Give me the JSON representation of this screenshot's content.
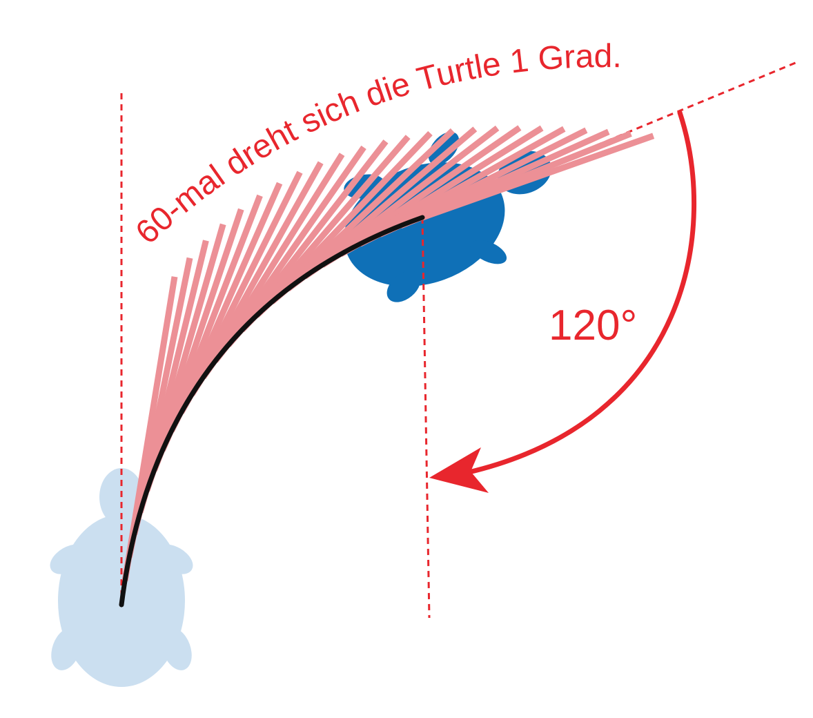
{
  "caption": "60-mal dreht sich die Turtle 1 Grad.",
  "angle_label": "120°",
  "colors": {
    "accent_red": "#e8262d",
    "ray_pink": "#ec9096",
    "turtle_start": "#cbdff0",
    "turtle_end": "#0f70b7",
    "path": "#111111"
  },
  "icons": [
    "turtle-start-icon",
    "turtle-end-icon",
    "rotation-arrow-icon"
  ]
}
